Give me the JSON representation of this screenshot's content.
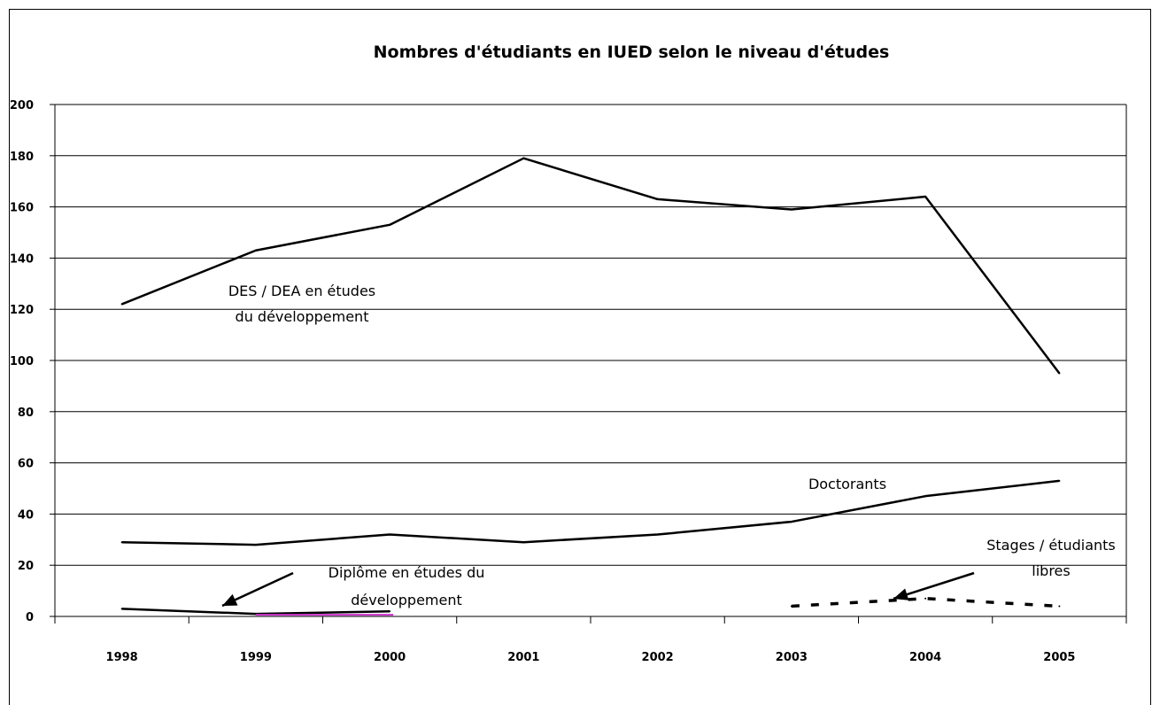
{
  "chart_data": {
    "type": "line",
    "title": "Nombres d'étudiants en IUED selon le niveau d'études",
    "xlabel": "",
    "ylabel": "",
    "categories": [
      "1998",
      "1999",
      "2000",
      "2001",
      "2002",
      "2003",
      "2004",
      "2005"
    ],
    "ylim": [
      0,
      200
    ],
    "yticks": [
      0,
      20,
      40,
      60,
      80,
      100,
      120,
      140,
      160,
      180,
      200
    ],
    "grid": true,
    "legend": "none",
    "series": [
      {
        "key": "des",
        "values": [
          122,
          143,
          153,
          179,
          163,
          159,
          164,
          95
        ],
        "color": "#000000",
        "style": "solid"
      },
      {
        "key": "doctorants",
        "values": [
          29,
          28,
          32,
          29,
          32,
          37,
          47,
          53
        ],
        "color": "#000000",
        "style": "solid"
      },
      {
        "key": "diplome",
        "values": [
          3,
          1,
          2,
          null,
          null,
          null,
          null,
          null
        ],
        "color": "#000000",
        "style": "solid"
      },
      {
        "key": "stages",
        "values": [
          null,
          null,
          null,
          null,
          null,
          4,
          7,
          4
        ],
        "color": "#000000",
        "style": "dashed"
      }
    ],
    "annotations": {
      "des": [
        "DES / DEA en études",
        "du développement"
      ],
      "doctorants": [
        "Doctorants"
      ],
      "diplome": [
        "Diplôme en études du",
        "développement"
      ],
      "stages": [
        "Stages / étudiants",
        "libres"
      ]
    }
  }
}
